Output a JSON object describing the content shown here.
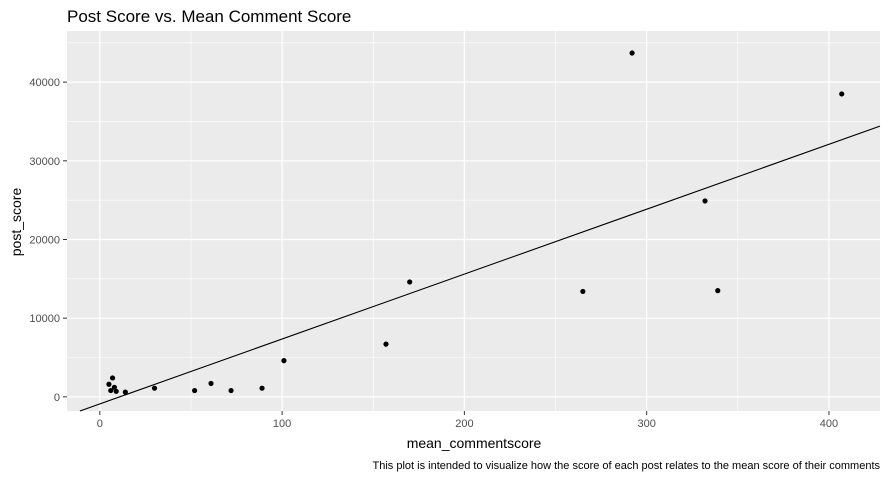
{
  "chart_data": {
    "type": "scatter",
    "title": "Post Score vs. Mean Comment Score",
    "xlabel": "mean_commentscore",
    "ylabel": "post_score",
    "caption": "This plot is intended to visualize how the score of each post relates to the mean score of their comments",
    "xlim": [
      -18,
      428
    ],
    "ylim": [
      -1800,
      46500
    ],
    "x_ticks": [
      0,
      100,
      200,
      300,
      400
    ],
    "y_ticks": [
      0,
      10000,
      20000,
      30000,
      40000
    ],
    "x_tick_labels": [
      "0",
      "100",
      "200",
      "300",
      "400"
    ],
    "y_tick_labels": [
      "0",
      "10000",
      "20000",
      "30000",
      "40000"
    ],
    "grid": true,
    "legend": "none",
    "colors": {
      "panel": "#ebebeb",
      "grid_major": "#ffffff",
      "point": "#000000",
      "line": "#000000"
    },
    "points": [
      {
        "x": 5,
        "y": 1600
      },
      {
        "x": 6,
        "y": 800
      },
      {
        "x": 7,
        "y": 2400
      },
      {
        "x": 8,
        "y": 1200
      },
      {
        "x": 9,
        "y": 700
      },
      {
        "x": 14,
        "y": 600
      },
      {
        "x": 30,
        "y": 1100
      },
      {
        "x": 52,
        "y": 800
      },
      {
        "x": 61,
        "y": 1700
      },
      {
        "x": 72,
        "y": 800
      },
      {
        "x": 89,
        "y": 1100
      },
      {
        "x": 101,
        "y": 4600
      },
      {
        "x": 157,
        "y": 6700
      },
      {
        "x": 170,
        "y": 14600
      },
      {
        "x": 265,
        "y": 13400
      },
      {
        "x": 292,
        "y": 43700
      },
      {
        "x": 332,
        "y": 24900
      },
      {
        "x": 339,
        "y": 13500
      },
      {
        "x": 407,
        "y": 38500
      }
    ],
    "fit_line": {
      "intercept": -900,
      "slope": 82.5
    }
  }
}
